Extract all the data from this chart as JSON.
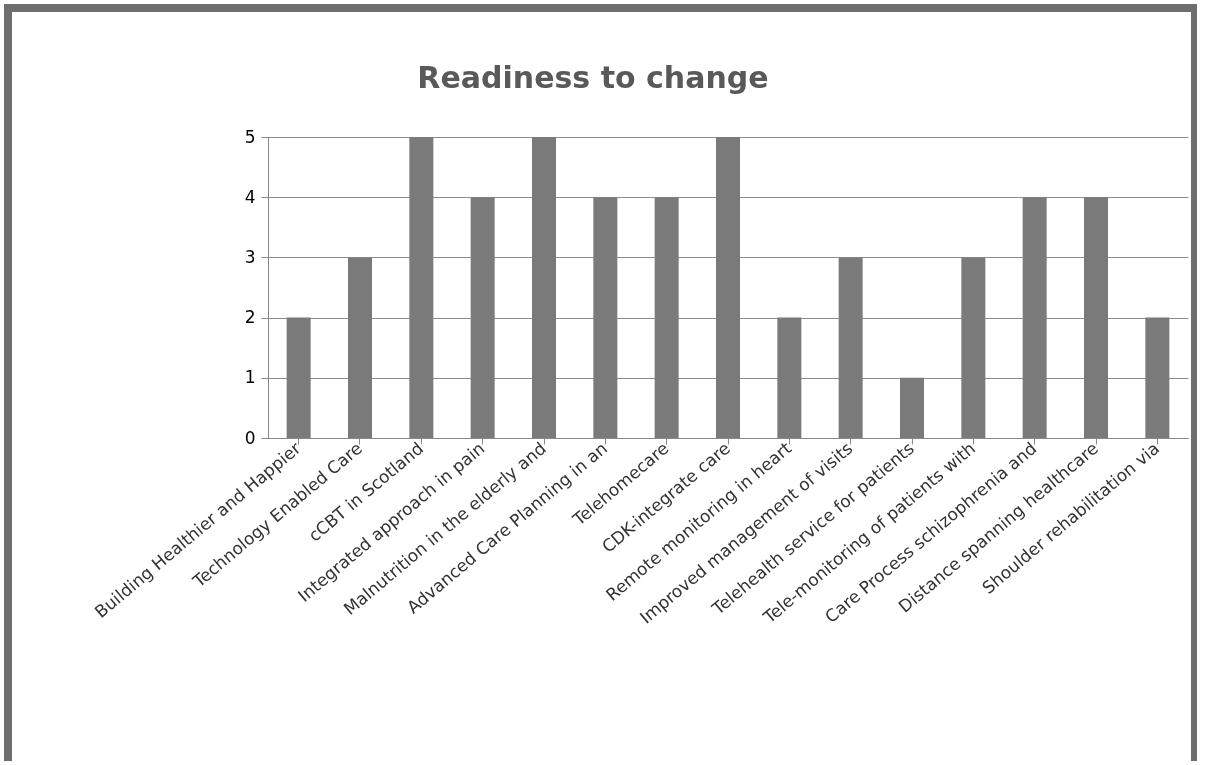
{
  "chart_data": {
    "type": "bar",
    "title": "Readiness to change",
    "categories": [
      "Building Healthier and Happier",
      "Technology Enabled Care",
      "cCBT in Scotland",
      "Integrated approach in pain",
      "Malnutrition in the elderly and",
      "Advanced Care Planning in an",
      "Telehomecare",
      "CDK-integrate care",
      "Remote monitoring in heart",
      "Improved management of visits",
      "Telehealth service for patients",
      "Tele-monitoring of patients with",
      "Care Process schizophrenia and",
      "Distance spanning healthcare",
      "Shoulder rehabilitation via"
    ],
    "values": [
      2,
      3,
      5,
      4,
      5,
      4,
      4,
      5,
      2,
      3,
      1,
      3,
      4,
      4,
      2
    ],
    "color": "#7a7a7a",
    "ylim": [
      0,
      5
    ],
    "yticks": [
      0,
      1,
      2,
      3,
      4,
      5
    ],
    "grid": "y"
  }
}
